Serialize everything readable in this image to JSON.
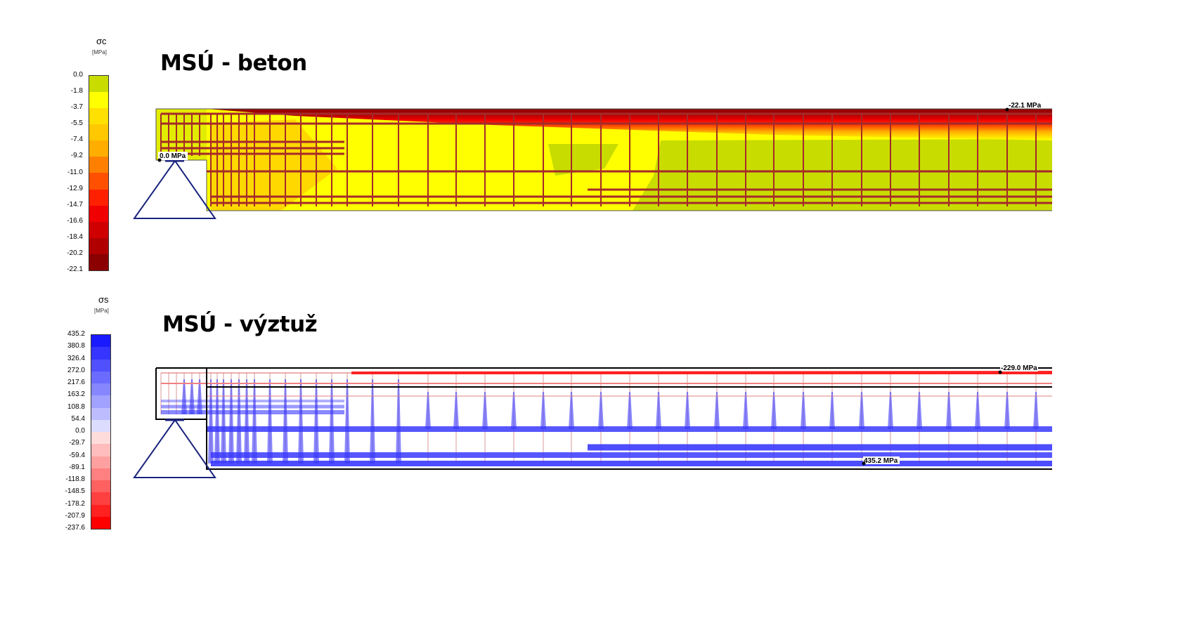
{
  "concrete": {
    "title": "MSÚ - beton",
    "legend": {
      "symbol": "σc",
      "unit": "[MPa]",
      "labels": [
        "0.0",
        "-1.8",
        "-3.7",
        "-5.5",
        "-7.4",
        "-9.2",
        "-11.0",
        "-12.9",
        "-14.7",
        "-16.6",
        "-18.4",
        "-20.2",
        "-22.1"
      ],
      "colors": [
        "#c8dc00",
        "#ffff00",
        "#ffe000",
        "#ffc800",
        "#ffae00",
        "#ff8000",
        "#ff5000",
        "#ff2000",
        "#f00000",
        "#d00000",
        "#b00000",
        "#8b0000"
      ]
    },
    "max_label": "-22.1 MPa",
    "min_label": "0.0 MPa"
  },
  "steel": {
    "title": "MSÚ - výztuž",
    "legend": {
      "symbol": "σs",
      "unit": "[MPa]",
      "labels": [
        "435.2",
        "380.8",
        "326.4",
        "272.0",
        "217.6",
        "163.2",
        "108.8",
        "54.4",
        "0.0",
        "-29.7",
        "-59.4",
        "-89.1",
        "-118.8",
        "-148.5",
        "-178.2",
        "-207.9",
        "-237.6"
      ],
      "colors": [
        "#1a1aff",
        "#3535ff",
        "#5050ff",
        "#6b6bff",
        "#8686ff",
        "#a1a1ff",
        "#bcbcff",
        "#dcdcff",
        "#ffdcdc",
        "#ffbcbc",
        "#ffa0a0",
        "#ff8080",
        "#ff6060",
        "#ff4040",
        "#ff2020",
        "#ff0000"
      ]
    },
    "min_label": "-229.0 MPa",
    "max_label": "435.2 MPa"
  },
  "colors": {
    "rebar": "#a52a2a",
    "support": "#1a237e",
    "steel_tension": "#3a3aff",
    "steel_compression": "#ff1010"
  }
}
